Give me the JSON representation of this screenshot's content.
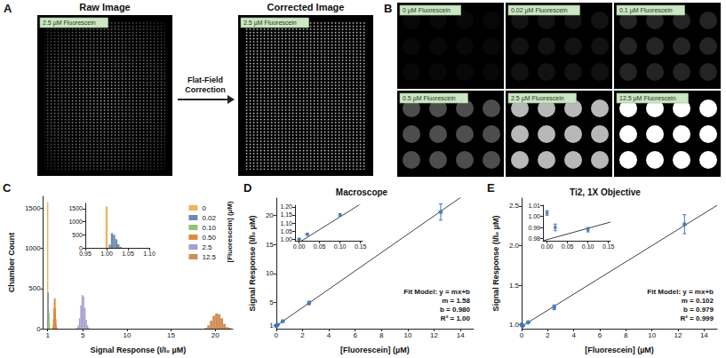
{
  "image_panels": {
    "A": {
      "panel": "A",
      "titles": [
        "Raw Image",
        "Corrected Image"
      ],
      "arrow_label": "Flat-Field Correction",
      "image_label": "2.5 µM Fluorescein"
    },
    "B": {
      "panel": "B",
      "image_labels": [
        "0 µM Fluorescein",
        "0.02 µM Fluorescein",
        "0.1 µM Fluorescein",
        "0.5 µM Fluorescein",
        "2.5 µM Fluorescein",
        "12.5 µM Fluorescein"
      ]
    }
  },
  "chart_data": [
    {
      "panel": "C",
      "type": "histogram",
      "x_label": "Signal Response (I/I₀ µM)",
      "y_label": "Chamber Count",
      "xlim": [
        0.5,
        22
      ],
      "xticks": [
        1,
        5,
        10,
        15,
        20
      ],
      "ylim": [
        0,
        1650
      ],
      "yticks": [
        0,
        500,
        1000,
        1500
      ],
      "legend": "upper right",
      "legend_title": "[Fluorescein] (µM)",
      "series": [
        {
          "name": "0",
          "color": "#efb45c",
          "bins": [
            0.97,
            1.03
          ],
          "counts": [
            1580
          ]
        },
        {
          "name": "0.02",
          "color": "#6c8cab",
          "bins": [
            1.03,
            1.06,
            1.09
          ],
          "counts": [
            450,
            160
          ]
        },
        {
          "name": "0.10",
          "color": "#93c276",
          "bins": [
            1.09,
            1.13,
            1.17,
            1.21
          ],
          "counts": [
            90,
            200,
            70
          ]
        },
        {
          "name": "0.50",
          "color": "#e08a3c",
          "bins": [
            1.55,
            1.6,
            1.65,
            1.7,
            1.75,
            1.8,
            1.85,
            1.9,
            1.95,
            2.0,
            2.05
          ],
          "counts": [
            10,
            40,
            120,
            260,
            370,
            380,
            250,
            120,
            40,
            10
          ]
        },
        {
          "name": "2.5",
          "color": "#a69ccf",
          "bins": [
            4.25,
            4.4,
            4.55,
            4.7,
            4.85,
            5.0,
            5.15,
            5.3,
            5.45,
            5.6,
            5.75
          ],
          "counts": [
            10,
            40,
            130,
            290,
            420,
            400,
            260,
            110,
            40,
            10
          ]
        },
        {
          "name": "12.5",
          "color": "#d28e55",
          "bins": [
            18.8,
            19.1,
            19.4,
            19.7,
            20.0,
            20.3,
            20.6,
            20.9,
            21.2,
            21.5,
            21.8
          ],
          "counts": [
            10,
            40,
            100,
            160,
            190,
            180,
            130,
            60,
            20,
            10
          ]
        }
      ],
      "inset": {
        "type": "histogram",
        "xlim": [
          0.95,
          1.1
        ],
        "xticks": [
          0.95,
          {
            "value": 1,
            "label": "1.00"
          },
          1.05,
          {
            "value": 1.1,
            "label": "1.10"
          }
        ],
        "ylim": [
          0,
          1700
        ],
        "yticks": [
          0,
          500,
          1000,
          1500
        ],
        "series": [
          {
            "name": "0",
            "color": "#efb45c",
            "bins": [
              0.9975,
              1.0025
            ],
            "counts": [
              1580
            ]
          },
          {
            "name": "0.02",
            "color": "#6c8cab",
            "bins": [
              1.005,
              1.01,
              1.015,
              1.02,
              1.025,
              1.03,
              1.035
            ],
            "counts": [
              120,
              560,
              500,
              330,
              140,
              40
            ]
          }
        ]
      }
    },
    {
      "panel": "D",
      "type": "scatter",
      "title": "Macroscope",
      "x_label": "[Fluorescein] (µM)",
      "y_label": "Signal Response (I/I₀ µM)",
      "x": [
        0,
        0.02,
        0.1,
        0.5,
        2.5,
        12.5
      ],
      "values": [
        1.0,
        1.03,
        1.15,
        1.78,
        4.93,
        20.6
      ],
      "errors": [
        0.003,
        0.005,
        0.008,
        0.05,
        0.3,
        1.4
      ],
      "color": "#3d74b5",
      "marker": "circle",
      "xlim": [
        0,
        15
      ],
      "xticks": [
        0,
        2,
        4,
        6,
        8,
        10,
        12,
        14
      ],
      "ylim": [
        0.5,
        23
      ],
      "yticks": [
        1,
        5,
        10,
        15,
        20
      ],
      "fit": {
        "m": 1.58,
        "b": 0.98,
        "color": "#404040",
        "line_style": "solid"
      },
      "annotations": [
        "Fit Model: y = mx+b",
        "m = 1.58",
        "b = 0.980",
        "R² = 1.00"
      ],
      "inset": {
        "type": "scatter",
        "x": [
          0,
          0.02,
          0.1
        ],
        "values": [
          1.0,
          1.03,
          1.15
        ],
        "errors": [
          0.003,
          0.005,
          0.008
        ],
        "xlim": [
          -0.01,
          0.155
        ],
        "xticks": [
          {
            "value": 0,
            "label": "0.00"
          },
          0.05,
          {
            "value": 0.1,
            "label": "0.10"
          },
          0.15
        ],
        "ylim": [
          0.99,
          1.21
        ],
        "yticks": [
          {
            "value": 1,
            "label": "1.00"
          },
          1.05,
          {
            "value": 1.1,
            "label": "1.10"
          },
          1.15,
          {
            "value": 1.2,
            "label": "1.20"
          }
        ]
      }
    },
    {
      "panel": "E",
      "type": "scatter",
      "title": "Ti2, 1X Objective",
      "x_label": "[Fluorescein] (µM)",
      "y_label": "Signal Response (I/I₀ µM)",
      "x": [
        0,
        0.02,
        0.1,
        0.5,
        2.5,
        12.5
      ],
      "values": [
        1.003,
        0.99,
        0.988,
        1.03,
        1.22,
        2.27
      ],
      "errors": [
        0.002,
        0.003,
        0.002,
        0.01,
        0.03,
        0.12
      ],
      "color": "#3d74b5",
      "marker": "circle",
      "xlim": [
        0,
        15
      ],
      "xticks": [
        0,
        2,
        4,
        6,
        8,
        10,
        12,
        14
      ],
      "ylim": [
        0.95,
        2.6
      ],
      "yticks": [
        {
          "value": 1,
          "label": "1.0"
        },
        1.5,
        {
          "value": 2,
          "label": "2.0"
        },
        2.5
      ],
      "fit": {
        "m": 0.102,
        "b": 0.979,
        "color": "#404040",
        "line_style": "solid"
      },
      "annotations": [
        "Fit Model: y = mx+b",
        "m = 0.102",
        "b = 0.979",
        "R² = 0.999"
      ],
      "inset": {
        "type": "scatter",
        "x": [
          0,
          0.02,
          0.1
        ],
        "values": [
          1.003,
          0.99,
          0.988
        ],
        "errors": [
          0.002,
          0.003,
          0.002
        ],
        "xlim": [
          -0.01,
          0.155
        ],
        "xticks": [
          {
            "value": 0,
            "label": "0.00"
          },
          0.05,
          {
            "value": 0.1,
            "label": "0.10"
          },
          0.15
        ],
        "ylim": [
          0.978,
          1.01
        ],
        "yticks": [
          0.98,
          0.99,
          {
            "value": 1,
            "label": "1.00"
          },
          1.01
        ]
      }
    }
  ]
}
